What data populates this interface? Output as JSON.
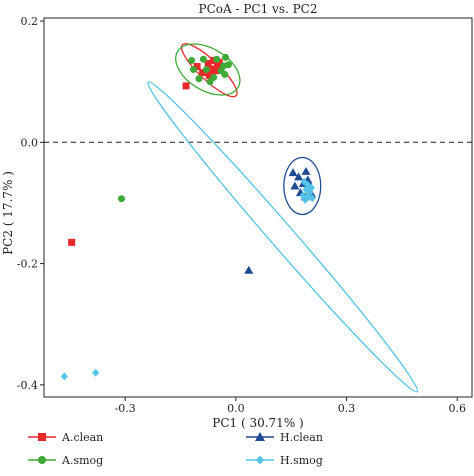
{
  "chart_data": {
    "type": "scatter",
    "title": "PCoA - PC1 vs. PC2",
    "xlabel": "PC1 ( 30.71% )",
    "ylabel": "PC2 ( 17.7% )",
    "xlim": [
      -0.52,
      0.64
    ],
    "ylim": [
      -0.42,
      0.205
    ],
    "xticks": [
      -0.3,
      0.0,
      0.3,
      0.6
    ],
    "xtick_labels": [
      "-0.3",
      "0.0",
      "0.3",
      "0.6"
    ],
    "yticks": [
      -0.4,
      -0.2,
      0.0,
      0.2
    ],
    "ytick_labels": [
      "-0.4",
      "-0.2",
      "0.0",
      "0.2"
    ],
    "reference_line": {
      "y": 0.0,
      "style": "dashed"
    },
    "grid": false,
    "legend_position": "bottom",
    "series": [
      {
        "name": "A.clean",
        "color": "#e8282b",
        "marker": "square",
        "points": [
          [
            -0.135,
            0.093
          ],
          [
            -0.105,
            0.125
          ],
          [
            -0.09,
            0.115
          ],
          [
            -0.075,
            0.13
          ],
          [
            -0.068,
            0.121
          ],
          [
            -0.06,
            0.135
          ],
          [
            -0.055,
            0.118
          ],
          [
            -0.05,
            0.128
          ],
          [
            -0.045,
            0.132
          ],
          [
            -0.072,
            0.11
          ],
          [
            -0.445,
            -0.165
          ]
        ],
        "ellipse": {
          "cx": -0.072,
          "cy": 0.119,
          "rx": 0.084,
          "ry": 0.018,
          "angle_deg": -30
        }
      },
      {
        "name": "A.smog",
        "color": "#3daa35",
        "marker": "circle",
        "points": [
          [
            -0.12,
            0.135
          ],
          [
            -0.115,
            0.12
          ],
          [
            -0.1,
            0.105
          ],
          [
            -0.088,
            0.137
          ],
          [
            -0.08,
            0.12
          ],
          [
            -0.07,
            0.1
          ],
          [
            -0.06,
            0.107
          ],
          [
            -0.052,
            0.137
          ],
          [
            -0.04,
            0.118
          ],
          [
            -0.03,
            0.112
          ],
          [
            -0.028,
            0.14
          ],
          [
            -0.02,
            0.128
          ],
          [
            -0.033,
            0.126
          ],
          [
            -0.31,
            -0.093
          ]
        ],
        "ellipse": {
          "cx": -0.076,
          "cy": 0.12,
          "rx": 0.087,
          "ry": 0.036,
          "angle_deg": -20
        }
      },
      {
        "name": "H.clean",
        "color": "#1c4c94",
        "marker": "triangle",
        "points": [
          [
            0.155,
            -0.05
          ],
          [
            0.16,
            -0.072
          ],
          [
            0.17,
            -0.057
          ],
          [
            0.175,
            -0.083
          ],
          [
            0.183,
            -0.068
          ],
          [
            0.19,
            -0.048
          ],
          [
            0.195,
            -0.062
          ],
          [
            0.2,
            -0.07
          ],
          [
            0.205,
            -0.085
          ],
          [
            0.188,
            -0.09
          ],
          [
            0.035,
            -0.211
          ]
        ],
        "ellipse": {
          "cx": 0.18,
          "cy": -0.072,
          "rx": 0.05,
          "ry": 0.047,
          "angle_deg": 0
        }
      },
      {
        "name": "H.smog",
        "color": "#52c2e6",
        "marker": "diamond",
        "points": [
          [
            0.185,
            -0.065
          ],
          [
            0.19,
            -0.078
          ],
          [
            0.195,
            -0.07
          ],
          [
            0.2,
            -0.083
          ],
          [
            0.205,
            -0.075
          ],
          [
            0.195,
            -0.09
          ],
          [
            0.188,
            -0.095
          ],
          [
            0.182,
            -0.088
          ],
          [
            0.207,
            -0.092
          ],
          [
            -0.465,
            -0.386
          ],
          [
            -0.38,
            -0.38
          ]
        ],
        "ellipse": {
          "cx": 0.127,
          "cy": -0.156,
          "rx": 0.445,
          "ry": 0.022,
          "angle_deg": -35
        }
      }
    ]
  }
}
